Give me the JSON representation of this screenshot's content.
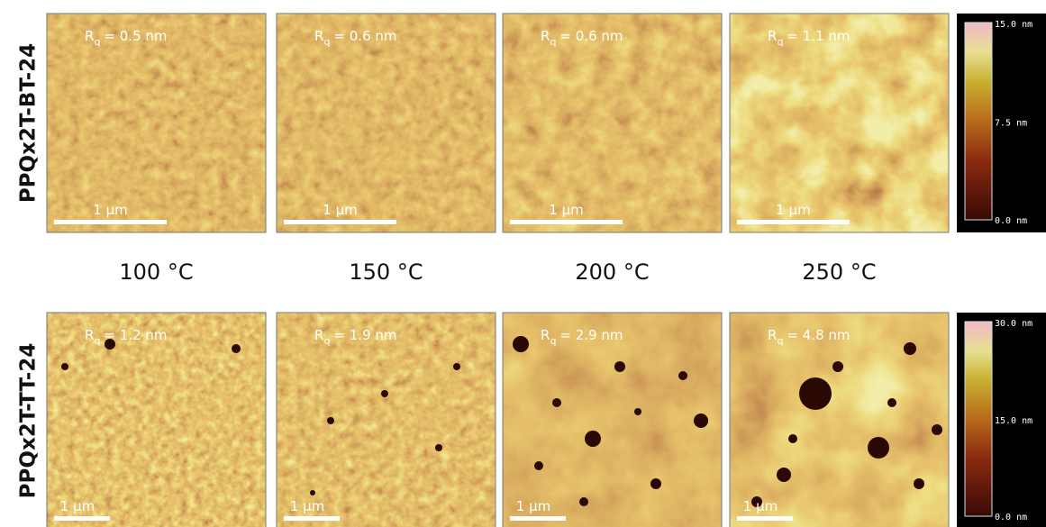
{
  "rows": [
    {
      "label": "PPQx2T-BT-24",
      "panels": [
        {
          "rq_symbol": "R",
          "rq_subscript": "q",
          "rq_value": "= 0.5 nm",
          "scale_bar": "1 µm"
        },
        {
          "rq_symbol": "R",
          "rq_subscript": "q",
          "rq_value": "= 0.6 nm",
          "scale_bar": "1 µm"
        },
        {
          "rq_symbol": "R",
          "rq_subscript": "q",
          "rq_value": "= 0.6 nm",
          "scale_bar": "1 µm"
        },
        {
          "rq_symbol": "R",
          "rq_subscript": "q",
          "rq_value": "= 1.1 nm",
          "scale_bar": "1 µm"
        }
      ],
      "colorbar": {
        "max": "15.0 nm",
        "mid": "7.5 nm",
        "min": "0.0 nm"
      }
    },
    {
      "label": "PPQx2T-TT-24",
      "panels": [
        {
          "rq_symbol": "R",
          "rq_subscript": "q",
          "rq_value": "= 1.2 nm",
          "scale_bar": "1 µm"
        },
        {
          "rq_symbol": "R",
          "rq_subscript": "q",
          "rq_value": "= 1.9 nm",
          "scale_bar": "1 µm"
        },
        {
          "rq_symbol": "R",
          "rq_subscript": "q",
          "rq_value": "= 2.9 nm",
          "scale_bar": "1 µm"
        },
        {
          "rq_symbol": "R",
          "rq_subscript": "q",
          "rq_value": "= 4.8 nm",
          "scale_bar": "1 µm"
        }
      ],
      "colorbar": {
        "max": "30.0 nm",
        "mid": "15.0 nm",
        "min": "0.0 nm"
      }
    }
  ],
  "temperatures": [
    "100 °C",
    "150 °C",
    "200 °C",
    "250 °C"
  ]
}
